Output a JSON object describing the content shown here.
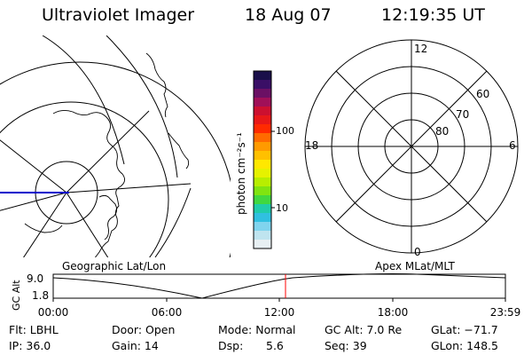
{
  "header": {
    "instrument": "Ultraviolet Imager",
    "date": "18 Aug 07",
    "time": "12:19:35 UT"
  },
  "colorbar": {
    "unit_label": "photon cm⁻²s⁻¹",
    "ticks": [
      "100",
      "10"
    ],
    "colors": [
      "#1a0f4a",
      "#3a0f66",
      "#6b1064",
      "#a01058",
      "#cc1030",
      "#e81818",
      "#ff2a00",
      "#ff6a00",
      "#ff9a00",
      "#ffc000",
      "#ffe800",
      "#e6f200",
      "#b8ee00",
      "#80e410",
      "#40d840",
      "#20ccaa",
      "#30c0e0",
      "#80d4ee",
      "#bfe4ef",
      "#e8f0f3"
    ]
  },
  "polar_plot": {
    "mlt_labels": [
      "12",
      "18",
      "6",
      "0"
    ],
    "lat_labels": [
      "60",
      "70",
      "80"
    ]
  },
  "track": {
    "geo_label": "Geographic Lat/Lon",
    "apex_label": "Apex MLat/MLT",
    "axis_label": "GC Alt",
    "y_ticks": [
      "9.0",
      "1.8"
    ],
    "x_ticks": [
      "00:00",
      "06:00",
      "12:00",
      "18:00",
      "23:59"
    ],
    "current_color": "#ff0000"
  },
  "info": {
    "filter": "Flt: LBHL",
    "ip": "IP: 36.0",
    "door": "Door: Open",
    "gain": "Gain: 14",
    "mode": "Mode: Normal",
    "dsp_label": "Dsp:",
    "dsp_value": "5.6",
    "gc_alt": "GC Alt: 7.0 Re",
    "seq": "Seq: 39",
    "glat": "GLat: −71.7",
    "glon": "GLon: 148.5"
  }
}
